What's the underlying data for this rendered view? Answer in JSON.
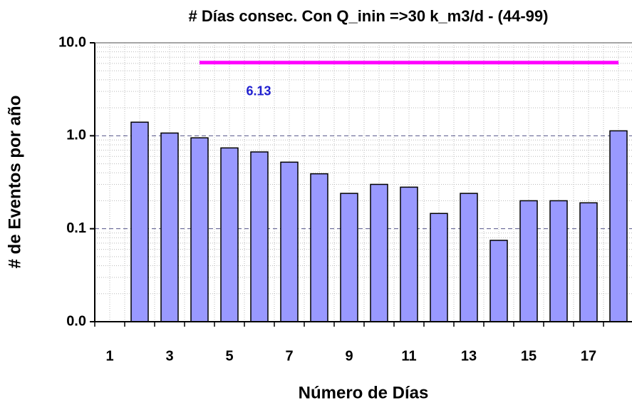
{
  "chart_data": {
    "type": "bar",
    "title": "# Días consec. Con Q_inin =>30 k_m3/d - (44-99)",
    "x_label": "Número de Días",
    "y_label": "# de Eventos por año",
    "categories": [
      "1",
      null,
      "3",
      null,
      "5",
      null,
      "7",
      null,
      "9",
      null,
      "11",
      null,
      "13",
      null,
      "15",
      null,
      "17",
      null
    ],
    "values": [
      null,
      1.4,
      1.07,
      0.95,
      0.74,
      0.67,
      0.52,
      0.39,
      0.24,
      0.3,
      0.28,
      0.146,
      0.24,
      0.075,
      0.2,
      0.2,
      0.19,
      1.13
    ],
    "color": "#9999ff",
    "log_scale": true,
    "ylim": [
      0.01,
      10
    ],
    "yticks": [
      {
        "value": 0.01,
        "label": "0.0"
      },
      0.1,
      {
        "value": 1,
        "label": "1.0"
      },
      {
        "value": 10,
        "label": "10.0"
      }
    ],
    "grid": true,
    "reference_line": {
      "value": 6.13,
      "color": "#ff00ff",
      "from": 4,
      "to": 18
    }
  }
}
